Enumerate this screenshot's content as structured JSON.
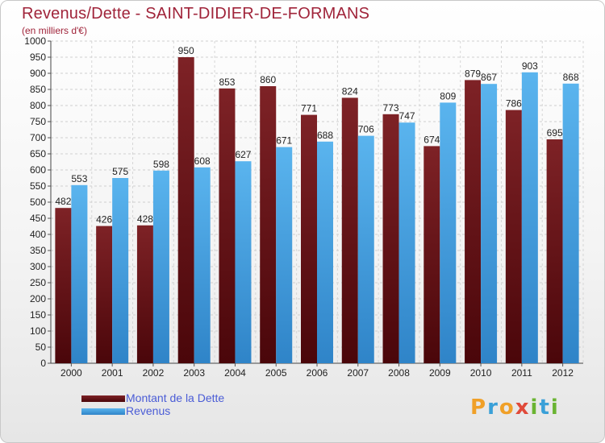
{
  "header": {
    "title": "Revenus/Dette - SAINT-DIDIER-DE-FORMANS",
    "subtitle": "(en milliers d'€)"
  },
  "legend": {
    "items": [
      {
        "label": "Montant de la Dette",
        "color": "#6b1014"
      },
      {
        "label": "Revenus",
        "color": "#4aa6e6"
      }
    ]
  },
  "logo": {
    "text": "Proxiti"
  },
  "chart_data": {
    "type": "bar",
    "title": "Revenus/Dette - SAINT-DIDIER-DE-FORMANS",
    "subtitle": "(en milliers d'€)",
    "xlabel": "",
    "ylabel": "",
    "ylim": [
      0,
      1000
    ],
    "ytick_step": 50,
    "grid": true,
    "legend_position": "bottom-left",
    "categories": [
      "2000",
      "2001",
      "2002",
      "2003",
      "2004",
      "2005",
      "2006",
      "2007",
      "2008",
      "2009",
      "2010",
      "2011",
      "2012"
    ],
    "series": [
      {
        "name": "Montant de la Dette",
        "color": "#6b1014",
        "values": [
          482,
          426,
          428,
          950,
          853,
          860,
          771,
          824,
          773,
          674,
          879,
          786,
          695
        ]
      },
      {
        "name": "Revenus",
        "color": "#4aa6e6",
        "values": [
          553,
          575,
          598,
          608,
          627,
          671,
          688,
          706,
          747,
          809,
          867,
          903,
          868
        ]
      }
    ]
  }
}
